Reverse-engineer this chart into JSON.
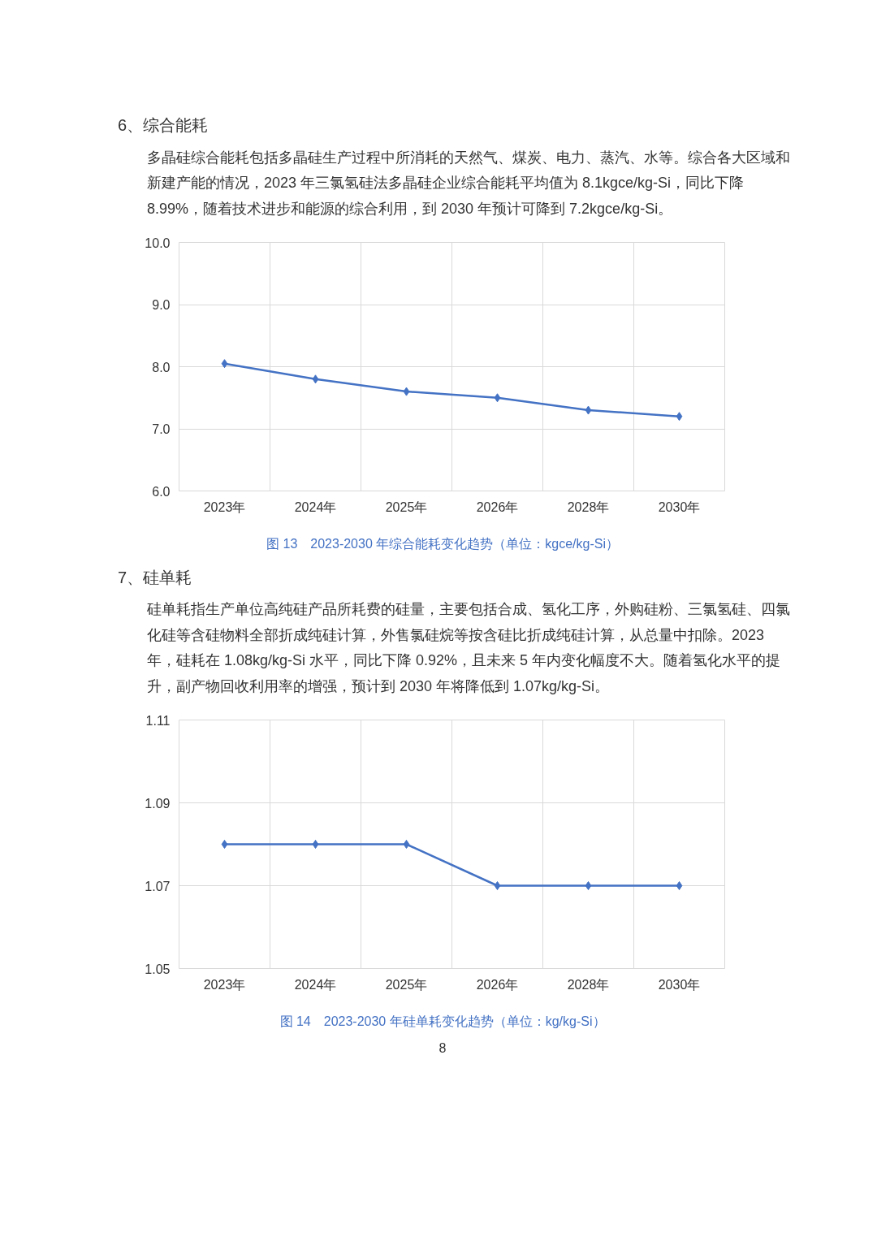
{
  "chart_data": [
    {
      "type": "line",
      "title": "图 13　2023-2030 年综合能耗变化趋势（单位：kgce/kg-Si）",
      "annotations": [
        "6、综合能耗",
        "多晶硅综合能耗包括多晶硅生产过程中所消耗的天然气、煤炭、电力、蒸汽、水等。综合各大区域和新建产能的情况，2023 年三氯氢硅法多晶硅企业综合能耗平均值为 8.1kgce/kg-Si，同比下降 8.99%，随着技术进步和能源的综合利用，到 2030 年预计可降到 7.2kgce/kg-Si。"
      ],
      "categories": [
        "2023年",
        "2024年",
        "2025年",
        "2026年",
        "2028年",
        "2030年"
      ],
      "series": [
        {
          "color": "#4472c4",
          "values": [
            8.05,
            7.8,
            7.6,
            7.5,
            7.3,
            7.2
          ]
        }
      ],
      "ylim": [
        6,
        10
      ],
      "yticks": [
        {
          "value": 6,
          "label": "6.0"
        },
        {
          "value": 7,
          "label": "7.0"
        },
        {
          "value": 8,
          "label": "8.0"
        },
        {
          "value": 9,
          "label": "9.0"
        },
        {
          "value": 10,
          "label": "10.0"
        }
      ],
      "grid": true,
      "marker": "diamond",
      "line_style": "solid"
    },
    {
      "type": "line",
      "title": "图 14　2023-2030 年硅单耗变化趋势（单位：kg/kg-Si）",
      "annotations": [
        "7、硅单耗",
        "硅单耗指生产单位高纯硅产品所耗费的硅量，主要包括合成、氢化工序，外购硅粉、三氯氢硅、四氯化硅等含硅物料全部折成纯硅计算，外售氯硅烷等按含硅比折成纯硅计算，从总量中扣除。2023 年，硅耗在 1.08kg/kg-Si 水平，同比下降 0.92%，且未来 5 年内变化幅度不大。随着氢化水平的提升，副产物回收利用率的增强，预计到 2030 年将降低到 1.07kg/kg-Si。",
        "8"
      ],
      "categories": [
        "2023年",
        "2024年",
        "2025年",
        "2026年",
        "2028年",
        "2030年"
      ],
      "series": [
        {
          "color": "#4472c4",
          "values": [
            1.08,
            1.08,
            1.08,
            1.07,
            1.07,
            1.07
          ]
        }
      ],
      "ylim": [
        1.05,
        1.11
      ],
      "yticks": [
        1.05,
        1.07,
        1.09,
        1.11
      ],
      "grid": true,
      "marker": "diamond",
      "line_style": "solid"
    }
  ]
}
